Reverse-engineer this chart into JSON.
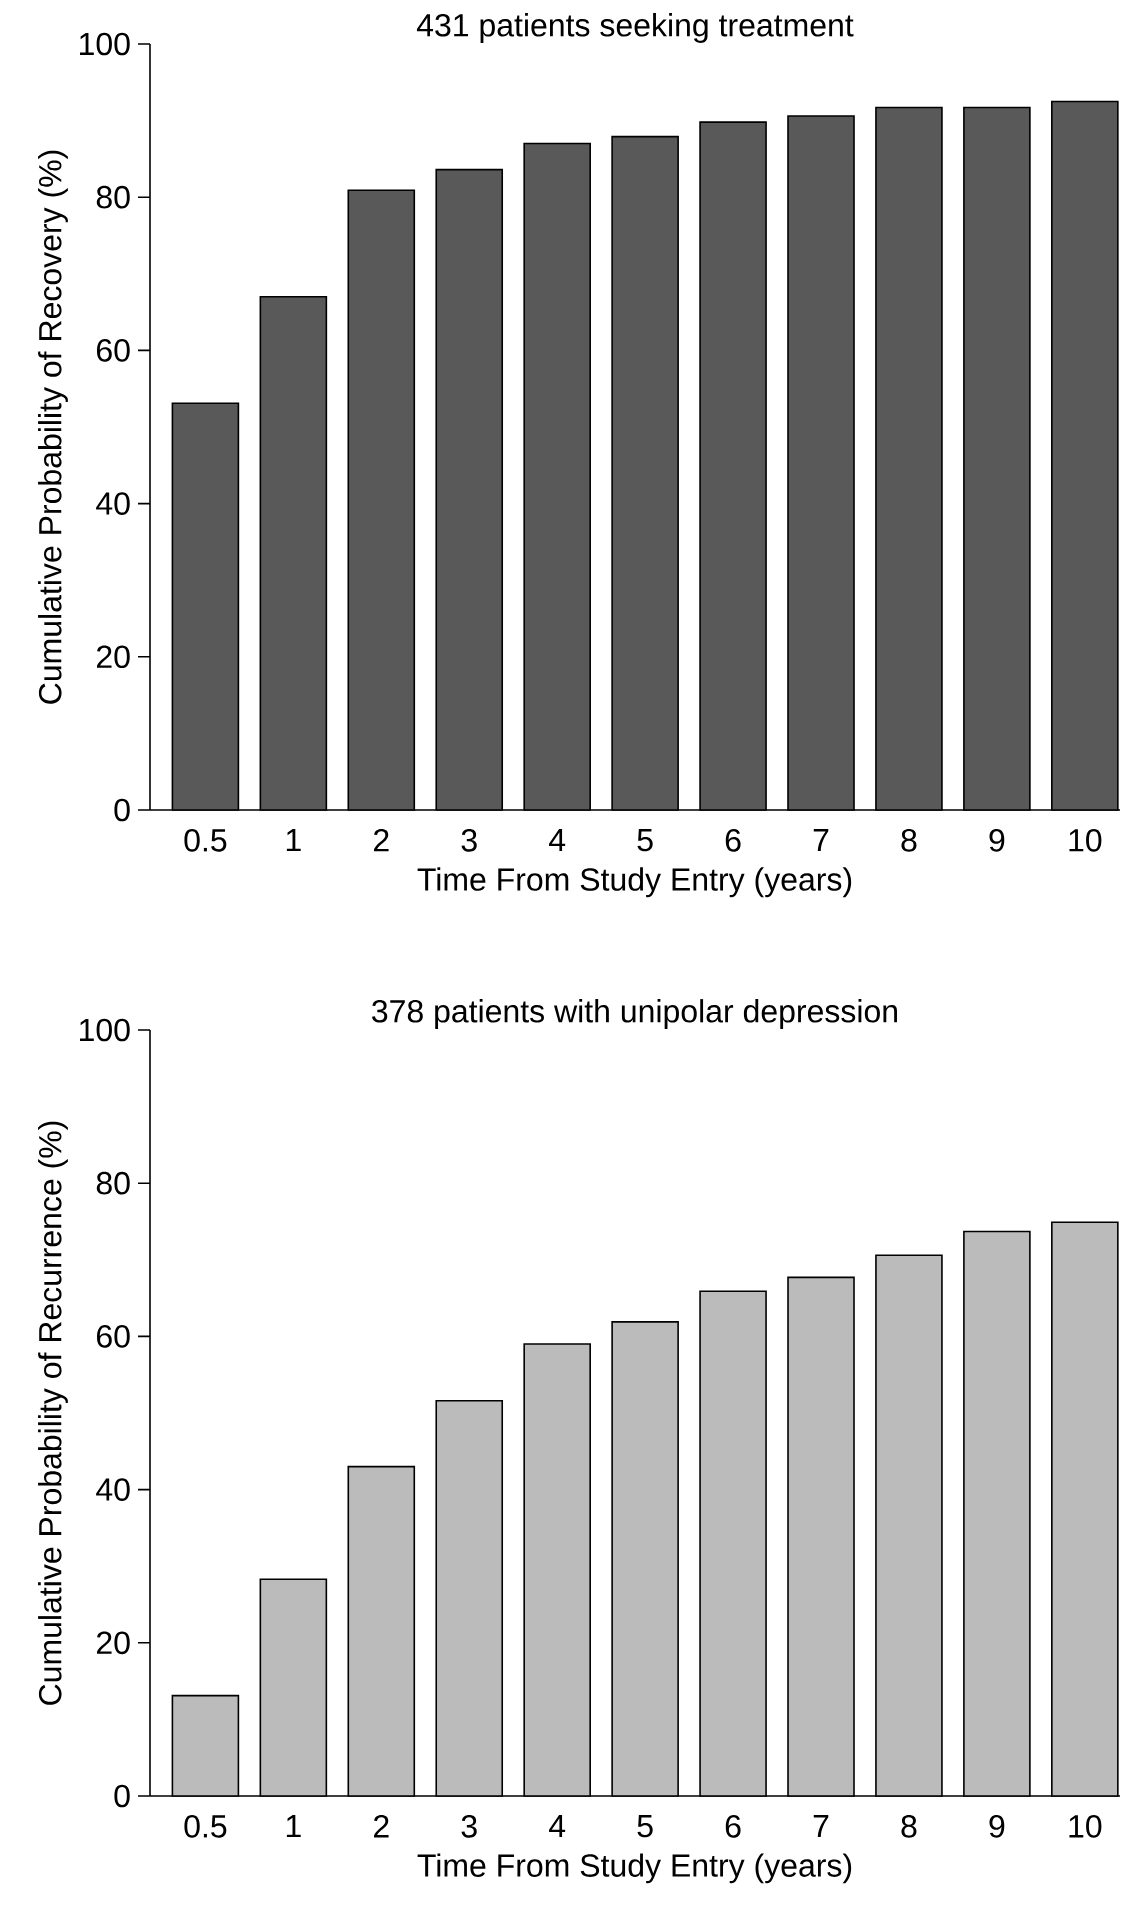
{
  "chart_data": [
    {
      "type": "bar",
      "title": "431 patients seeking treatment",
      "xlabel": "Time From Study Entry (years)",
      "ylabel": "Cumulative Probability of Recovery (%)",
      "categories": [
        "0.5",
        "1",
        "2",
        "3",
        "4",
        "5",
        "6",
        "7",
        "8",
        "9",
        "10"
      ],
      "values": [
        53.1,
        67.0,
        80.9,
        83.6,
        87.0,
        87.9,
        89.8,
        90.6,
        91.7,
        91.7,
        92.5
      ],
      "color": "#595959",
      "ylim": [
        0,
        100
      ],
      "yticks": [
        0,
        20,
        40,
        60,
        80,
        100
      ]
    },
    {
      "type": "bar",
      "title": "378 patients with unipolar depression",
      "xlabel": "Time From Study Entry (years)",
      "ylabel": "Cumulative Probability of Recurrence (%)",
      "categories": [
        "0.5",
        "1",
        "2",
        "3",
        "4",
        "5",
        "6",
        "7",
        "8",
        "9",
        "10"
      ],
      "values": [
        13.1,
        28.3,
        43.0,
        51.6,
        59.0,
        61.9,
        65.9,
        67.7,
        70.6,
        73.7,
        74.9
      ],
      "color": "#bbbbbb",
      "ylim": [
        0,
        100
      ],
      "yticks": [
        0,
        20,
        40,
        60,
        80,
        100
      ]
    }
  ]
}
